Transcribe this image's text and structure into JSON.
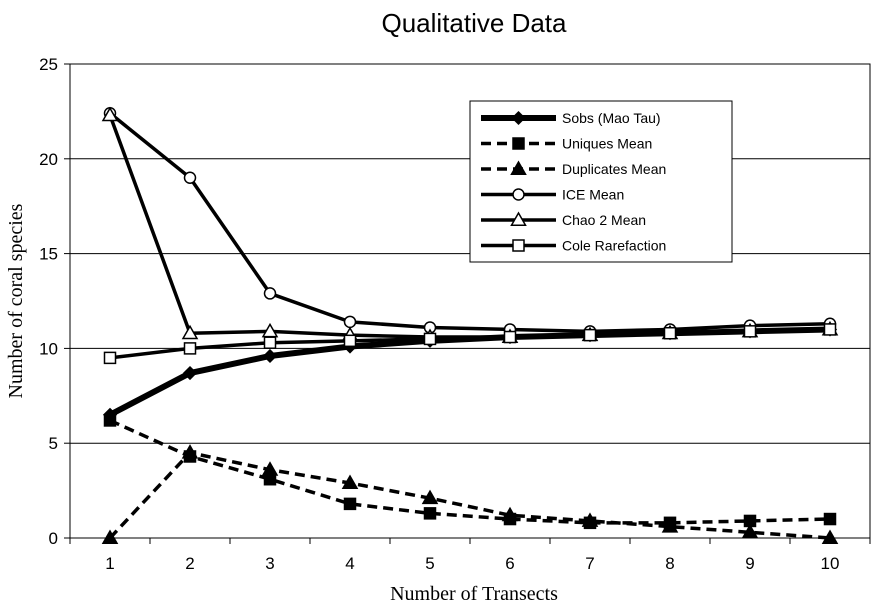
{
  "chart_data": {
    "type": "line",
    "title": "Qualitative Data",
    "xlabel": "Number of Transects",
    "ylabel": "Number of coral species",
    "x": [
      1,
      2,
      3,
      4,
      5,
      6,
      7,
      8,
      9,
      10
    ],
    "xlim": [
      0.5,
      10.5
    ],
    "ylim": [
      0,
      25
    ],
    "yticks": [
      0,
      5,
      10,
      15,
      20,
      25
    ],
    "grid": "horizontal",
    "legend_position": "top-right",
    "series": [
      {
        "name": "Sobs (Mao Tau)",
        "line": "solid-thick",
        "marker": "diamond-filled",
        "values": [
          6.5,
          8.7,
          9.6,
          10.1,
          10.4,
          10.6,
          10.7,
          10.8,
          10.9,
          11.0
        ]
      },
      {
        "name": "Uniques Mean",
        "line": "dashed",
        "marker": "square-filled",
        "values": [
          6.2,
          4.3,
          3.1,
          1.8,
          1.3,
          1.0,
          0.8,
          0.8,
          0.9,
          1.0
        ]
      },
      {
        "name": "Duplicates Mean",
        "line": "dashed",
        "marker": "triangle-filled",
        "values": [
          0,
          4.5,
          3.6,
          2.9,
          2.1,
          1.2,
          0.9,
          0.6,
          0.3,
          0.0
        ]
      },
      {
        "name": "ICE Mean",
        "line": "solid",
        "marker": "circle-open",
        "values": [
          22.4,
          19.0,
          12.9,
          11.4,
          11.1,
          11.0,
          10.9,
          11.0,
          11.2,
          11.3
        ]
      },
      {
        "name": "Chao 2 Mean",
        "line": "solid",
        "marker": "triangle-open",
        "values": [
          22.3,
          10.8,
          10.9,
          10.7,
          10.6,
          10.6,
          10.7,
          10.8,
          10.9,
          11.0
        ]
      },
      {
        "name": "Cole Rarefaction",
        "line": "solid",
        "marker": "square-open",
        "values": [
          9.5,
          10.0,
          10.3,
          10.4,
          10.5,
          10.6,
          10.7,
          10.8,
          10.9,
          11.0
        ]
      }
    ]
  }
}
